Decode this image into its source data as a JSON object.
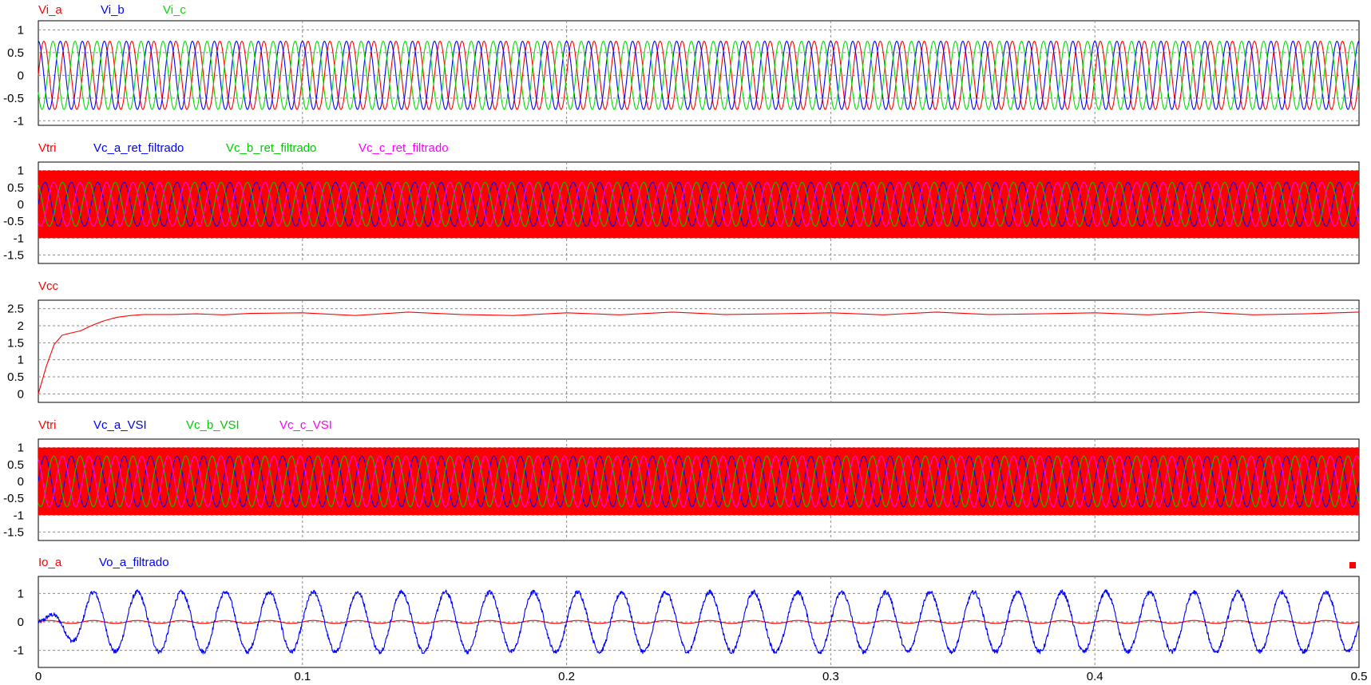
{
  "chart_data": [
    {
      "type": "line",
      "xlim": [
        0,
        0.5
      ],
      "ylim": [
        -1.1,
        1.2
      ],
      "yticks": [
        1,
        0.5,
        0,
        -0.5,
        -1
      ],
      "ytick_labels": [
        "1",
        "0.5",
        "0",
        "-0.5",
        "-1"
      ],
      "grid": true,
      "series": [
        {
          "name": "Vi_a",
          "color": "#ff0000",
          "shape": "sine",
          "amplitude": 0.75,
          "frequency_hz": 120,
          "phase_deg": 0,
          "offset": 0
        },
        {
          "name": "Vi_b",
          "color": "#0000ff",
          "shape": "sine",
          "amplitude": 0.75,
          "frequency_hz": 120,
          "phase_deg": 90,
          "offset": 0
        },
        {
          "name": "Vi_c",
          "color": "#00dd00",
          "shape": "sine",
          "amplitude": 0.75,
          "frequency_hz": 120,
          "phase_deg": 210,
          "offset": 0
        }
      ]
    },
    {
      "type": "line",
      "xlim": [
        0,
        0.5
      ],
      "ylim": [
        -1.75,
        1.25
      ],
      "yticks": [
        1,
        0.5,
        0,
        -0.5,
        -1,
        -1.5
      ],
      "ytick_labels": [
        "1",
        "0.5",
        "0",
        "-0.5",
        "-1",
        "-1.5"
      ],
      "grid": true,
      "series": [
        {
          "name": "Vtri",
          "color": "#ff0000",
          "shape": "carrier_band",
          "low": -1,
          "high": 1
        },
        {
          "name": "Vc_a_ret_filtrado",
          "color": "#0000ff",
          "shape": "sine",
          "amplitude": 0.65,
          "frequency_hz": 100,
          "phase_deg": 0,
          "offset": 0
        },
        {
          "name": "Vc_b_ret_filtrado",
          "color": "#00cc00",
          "shape": "sine",
          "amplitude": 0.65,
          "frequency_hz": 100,
          "phase_deg": 120,
          "offset": 0
        },
        {
          "name": "Vc_c_ret_filtrado",
          "color": "#ff00ff",
          "shape": "sine",
          "amplitude": 0.65,
          "frequency_hz": 100,
          "phase_deg": 240,
          "offset": 0
        }
      ]
    },
    {
      "type": "line",
      "xlim": [
        0,
        0.5
      ],
      "ylim": [
        -0.25,
        2.75
      ],
      "yticks": [
        2.5,
        2,
        1.5,
        1,
        0.5,
        0
      ],
      "ytick_labels": [
        "2.5",
        "2",
        "1.5",
        "1",
        "0.5",
        "0"
      ],
      "grid": true,
      "series": [
        {
          "name": "Vcc",
          "color": "#ff0000",
          "shape": "points",
          "x": [
            0,
            0.003,
            0.006,
            0.009,
            0.012,
            0.016,
            0.02,
            0.025,
            0.03,
            0.035,
            0.04,
            0.05,
            0.06,
            0.07,
            0.08,
            0.1,
            0.12,
            0.14,
            0.16,
            0.18,
            0.2,
            0.22,
            0.24,
            0.26,
            0.28,
            0.3,
            0.32,
            0.34,
            0.36,
            0.38,
            0.4,
            0.42,
            0.44,
            0.46,
            0.48,
            0.5
          ],
          "y": [
            0,
            0.8,
            1.45,
            1.72,
            1.78,
            1.85,
            2.0,
            2.15,
            2.25,
            2.3,
            2.33,
            2.33,
            2.35,
            2.32,
            2.36,
            2.38,
            2.3,
            2.4,
            2.33,
            2.3,
            2.38,
            2.32,
            2.4,
            2.33,
            2.35,
            2.38,
            2.32,
            2.4,
            2.33,
            2.35,
            2.38,
            2.32,
            2.4,
            2.32,
            2.35,
            2.4
          ]
        }
      ]
    },
    {
      "type": "line",
      "xlim": [
        0,
        0.5
      ],
      "ylim": [
        -1.75,
        1.25
      ],
      "yticks": [
        1,
        0.5,
        0,
        -0.5,
        -1,
        -1.5
      ],
      "ytick_labels": [
        "1",
        "0.5",
        "0",
        "-0.5",
        "-1",
        "-1.5"
      ],
      "grid": true,
      "series": [
        {
          "name": "Vtri",
          "color": "#ff0000",
          "shape": "carrier_band",
          "low": -1,
          "high": 1
        },
        {
          "name": "Vc_a_VSI",
          "color": "#0000ff",
          "shape": "sine",
          "amplitude": 0.75,
          "frequency_hz": 100,
          "phase_deg": 0,
          "offset": 0
        },
        {
          "name": "Vc_b_VSI",
          "color": "#00cc00",
          "shape": "sine",
          "amplitude": 0.75,
          "frequency_hz": 100,
          "phase_deg": 240,
          "offset": 0
        },
        {
          "name": "Vc_c_VSI",
          "color": "#ff00ff",
          "shape": "sine",
          "amplitude": 0.75,
          "frequency_hz": 100,
          "phase_deg": 120,
          "offset": 0
        }
      ]
    },
    {
      "type": "line",
      "xlim": [
        0,
        0.5
      ],
      "ylim": [
        -1.6,
        1.6
      ],
      "yticks": [
        1,
        0,
        -1
      ],
      "ytick_labels": [
        "1",
        "0",
        "-1"
      ],
      "grid": true,
      "series": [
        {
          "name": "Io_a",
          "color": "#ff0000",
          "shape": "sine",
          "amplitude": 0.05,
          "frequency_hz": 60,
          "phase_deg": 0,
          "offset": 0
        },
        {
          "name": "Vo_a_filtrado",
          "color": "#0000ff",
          "shape": "noisy_sine",
          "amplitude": 1.05,
          "frequency_hz": 60,
          "phase_deg": 0,
          "offset": 0,
          "noise": 0.08
        }
      ]
    }
  ],
  "x_axis": {
    "ticks": [
      0,
      0.1,
      0.2,
      0.3,
      0.4,
      0.5
    ],
    "tick_labels": [
      "0",
      "0.1",
      "0.2",
      "0.3",
      "0.4",
      "0.5"
    ]
  },
  "indicator": {
    "color": "#ff0000"
  }
}
